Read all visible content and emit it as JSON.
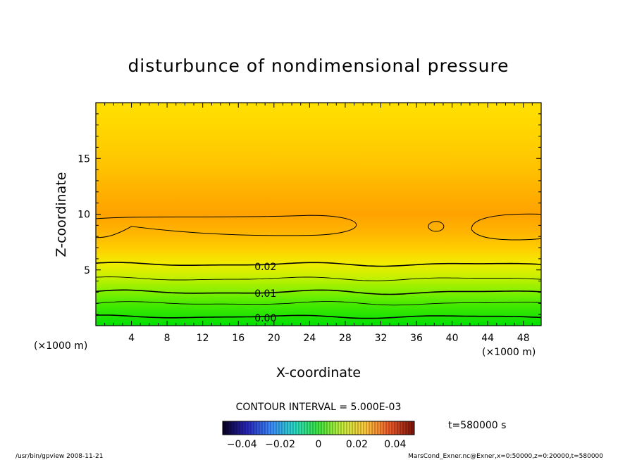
{
  "chart_data": {
    "type": "heatmap",
    "title": "disturbunce of nondimensional pressure",
    "xlabel": "X-coordinate",
    "ylabel": "Z-coordinate",
    "x_unit": "(×1000 m)",
    "z_unit": "(×1000 m)",
    "xlim": [
      0,
      50
    ],
    "ylim": [
      0,
      20
    ],
    "x_ticks": [
      4,
      8,
      12,
      16,
      20,
      24,
      28,
      32,
      36,
      40,
      44,
      48
    ],
    "y_ticks": [
      5,
      10,
      15
    ],
    "contour_labels": [
      {
        "text": "0.02",
        "x": 17.5,
        "z": 5.3
      },
      {
        "text": "0.01",
        "x": 17.5,
        "z": 2.9
      },
      {
        "text": "0.00",
        "x": 17.5,
        "z": 0.7
      }
    ],
    "contour_interval_text": "CONTOUR INTERVAL = 5.000E-03",
    "colorbar_ticks": [
      "−0.04",
      "−0.02",
      "0",
      "0.02",
      "0.04"
    ],
    "colorbar_range": [
      -0.05,
      0.05
    ],
    "time_label": "t=580000 s",
    "footer_left": "/usr/bin/gpview  2008-11-21",
    "footer_right": "MarsCond_Exner.nc@Exner,x=0:50000,z=0:20000,t=580000"
  }
}
